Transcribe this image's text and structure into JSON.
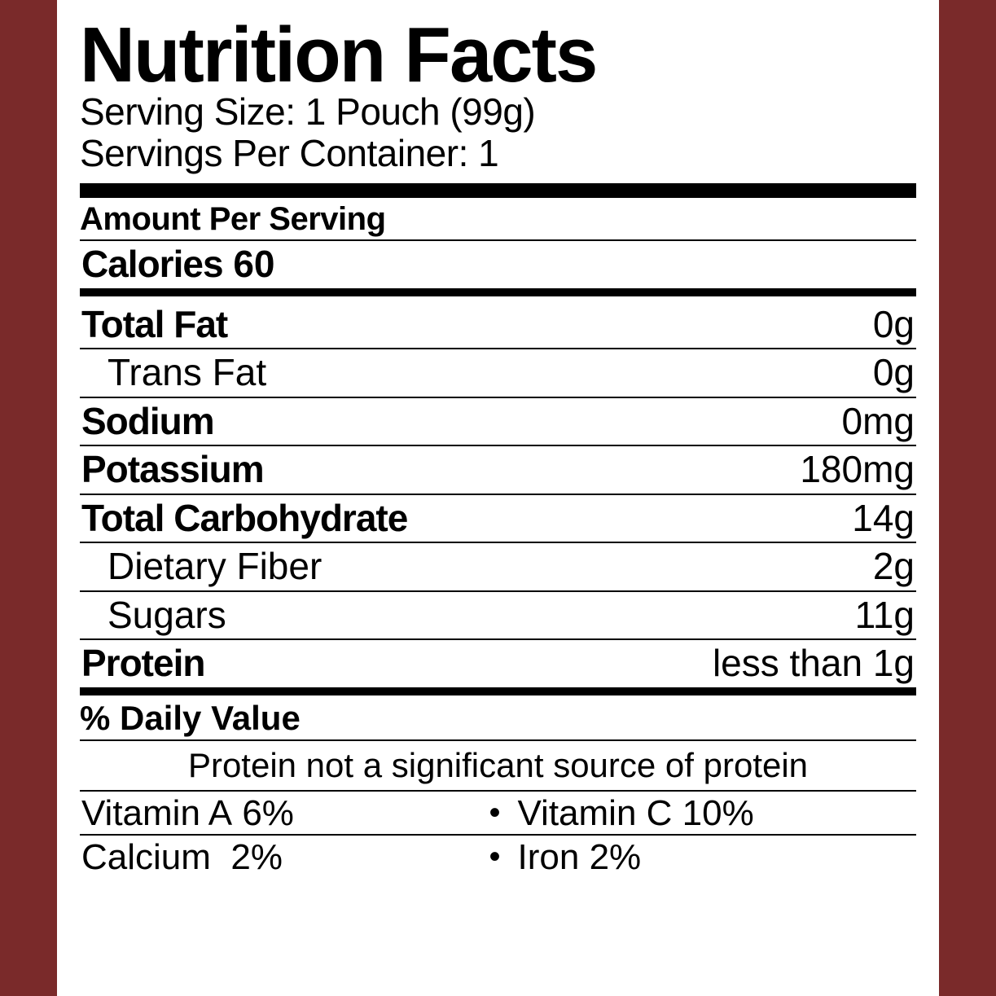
{
  "header": {
    "title": "Nutrition Facts",
    "serving_size": "Serving Size: 1 Pouch (99g)",
    "servings_per": "Servings Per Container: 1"
  },
  "aps": "Amount Per Serving",
  "calories": {
    "label": "Calories",
    "value": "60"
  },
  "nutrients": [
    {
      "label": "Total Fat",
      "value": "0g",
      "bold": true,
      "indent": false
    },
    {
      "label": "Trans Fat",
      "value": "0g",
      "bold": false,
      "indent": true
    },
    {
      "label": "Sodium",
      "value": "0mg",
      "bold": true,
      "indent": false
    },
    {
      "label": "Potassium",
      "value": "180mg",
      "bold": true,
      "indent": false
    },
    {
      "label": "Total Carbohydrate",
      "value": "14g",
      "bold": true,
      "indent": false
    },
    {
      "label": "Dietary Fiber",
      "value": "2g",
      "bold": false,
      "indent": true
    },
    {
      "label": "Sugars",
      "value": "11g",
      "bold": false,
      "indent": true
    },
    {
      "label": "Protein",
      "value": "less than 1g",
      "bold": true,
      "indent": false
    }
  ],
  "dv_label": "% Daily Value",
  "dv_note": "Protein not a significant source of protein",
  "vitamins": [
    {
      "left_label": "Vitamin A",
      "left_value": "6%",
      "right_label": "Vitamin C",
      "right_value": "10%"
    },
    {
      "left_label": "Calcium",
      "left_value": "2%",
      "right_label": "Iron",
      "right_value": "2%"
    }
  ],
  "colors": {
    "background": "#7a2a2a",
    "panel": "#ffffff",
    "text": "#000000"
  }
}
